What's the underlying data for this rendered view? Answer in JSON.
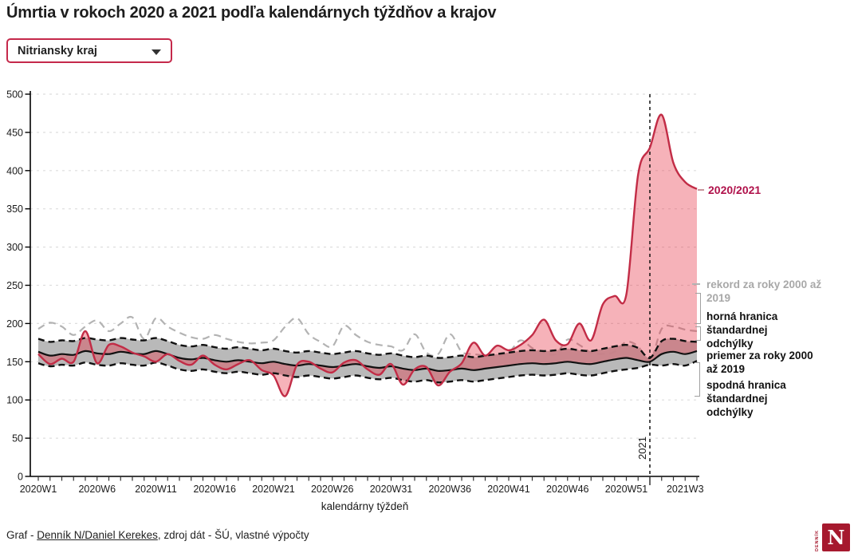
{
  "header": {
    "title": "Úmrtia v rokoch 2020 a 2021 podľa kalendárnych týždňov a krajov"
  },
  "controls": {
    "region_select": {
      "value": "Nitriansky kraj",
      "icon": "caret-down"
    }
  },
  "chart_data": {
    "type": "line",
    "xlabel": "kalendárny týždeň",
    "ylabel": "",
    "ylim": [
      0,
      500
    ],
    "y_ticks": [
      0,
      50,
      100,
      150,
      200,
      250,
      300,
      350,
      400,
      450,
      500
    ],
    "grid": "horizontal-dashed",
    "n_points": 57,
    "x_tick_indices": [
      0,
      5,
      10,
      15,
      20,
      25,
      30,
      35,
      40,
      45,
      50,
      55
    ],
    "x_tick_labels": [
      "2020W1",
      "2020W6",
      "2020W11",
      "2020W16",
      "2020W21",
      "2020W26",
      "2020W31",
      "2020W36",
      "2020W41",
      "2020W46",
      "2020W51",
      "2021W3"
    ],
    "series": [
      {
        "name": "2020/2021",
        "color": "#c22c46",
        "style": "solid",
        "width": 2.4,
        "values": [
          160,
          147,
          154,
          150,
          190,
          148,
          172,
          170,
          162,
          157,
          150,
          160,
          151,
          146,
          158,
          146,
          140,
          147,
          152,
          139,
          132,
          105,
          146,
          150,
          141,
          136,
          149,
          152,
          140,
          133,
          147,
          120,
          140,
          143,
          119,
          137,
          148,
          175,
          158,
          171,
          165,
          172,
          185,
          205,
          178,
          173,
          200,
          178,
          225,
          236,
          238,
          395,
          430,
          473,
          410,
          385,
          376
        ]
      },
      {
        "name": "rekord za roky 2000 až 2019",
        "color": "#b3b3b3",
        "style": "dashed",
        "width": 2.2,
        "values": [
          193,
          201,
          196,
          185,
          196,
          204,
          190,
          200,
          208,
          180,
          207,
          196,
          188,
          182,
          180,
          185,
          180,
          176,
          174,
          175,
          178,
          196,
          207,
          186,
          176,
          170,
          197,
          185,
          176,
          172,
          170,
          165,
          186,
          162,
          160,
          186,
          163,
          160,
          158,
          157,
          162,
          178,
          168,
          162,
          160,
          179,
          172,
          162,
          160,
          163,
          176,
          170,
          150,
          193,
          196,
          192,
          190
        ]
      },
      {
        "name": "horná hranica štandardnej odchýlky",
        "color": "#111111",
        "style": "dashed",
        "width": 2.4,
        "values": [
          180,
          176,
          178,
          177,
          181,
          179,
          178,
          181,
          179,
          178,
          181,
          177,
          172,
          170,
          172,
          169,
          167,
          169,
          167,
          165,
          167,
          164,
          162,
          164,
          162,
          160,
          162,
          164,
          161,
          159,
          161,
          158,
          156,
          158,
          155,
          156,
          158,
          156,
          158,
          160,
          162,
          164,
          165,
          164,
          165,
          167,
          165,
          164,
          167,
          170,
          172,
          168,
          155,
          177,
          180,
          177,
          176
        ]
      },
      {
        "name": "priemer za roky 2000 až 2019",
        "color": "#111111",
        "style": "solid",
        "width": 2.2,
        "values": [
          163,
          158,
          160,
          159,
          164,
          161,
          160,
          163,
          161,
          160,
          164,
          160,
          155,
          153,
          155,
          152,
          150,
          152,
          150,
          148,
          150,
          147,
          145,
          147,
          145,
          143,
          145,
          147,
          144,
          142,
          144,
          141,
          139,
          141,
          138,
          139,
          141,
          139,
          141,
          143,
          145,
          147,
          148,
          147,
          148,
          150,
          148,
          147,
          150,
          153,
          155,
          152,
          150,
          160,
          163,
          160,
          164
        ]
      },
      {
        "name": "spodná hranica štandardnej odchýlky",
        "color": "#111111",
        "style": "dashed",
        "width": 2.4,
        "values": [
          148,
          144,
          146,
          145,
          149,
          146,
          145,
          148,
          146,
          145,
          149,
          145,
          140,
          138,
          140,
          137,
          135,
          137,
          135,
          133,
          135,
          132,
          130,
          132,
          130,
          128,
          130,
          132,
          129,
          127,
          129,
          126,
          124,
          126,
          123,
          124,
          126,
          124,
          126,
          128,
          130,
          132,
          133,
          132,
          133,
          135,
          133,
          132,
          135,
          138,
          140,
          142,
          146,
          145,
          147,
          145,
          151
        ]
      }
    ],
    "fills": {
      "std_band": "#b9b9b9",
      "excess": "rgba(232,52,70,0.38)"
    },
    "annotations": {
      "year_divider": {
        "label": "2021",
        "index": 52
      }
    },
    "colors": {
      "axis": "#000000",
      "grid": "#dedede",
      "tick_text": "#1a1a1a"
    },
    "legend_position": "right"
  },
  "right_labels": {
    "current": "2020/2021",
    "record": "rekord za roky 2000 až 2019",
    "upper": "horná hranica štandardnej odchýlky",
    "average": "priemer za roky 2000 až 2019",
    "lower": "spodná hranica štandardnej odchýlky"
  },
  "footer": {
    "prefix": "Graf - ",
    "link": "Denník N/Daniel Kerekes",
    "suffix": ", zdroj dát - ŠÚ, vlastné výpočty"
  },
  "logo": {
    "vertical_text": "DENNÍK",
    "letter": "N",
    "color": "#a6192e"
  }
}
